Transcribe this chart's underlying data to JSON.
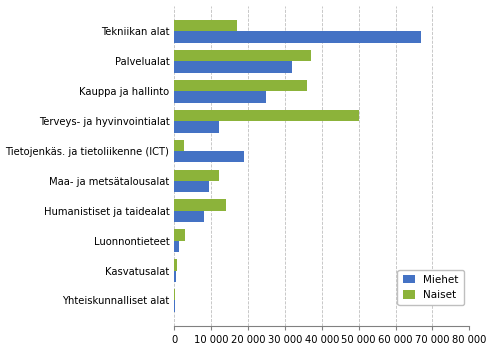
{
  "categories": [
    "Tekniikan alat",
    "Palvelualat",
    "Kauppa ja hallinto",
    "Terveys- ja hyvinvointialat",
    "Tietojenkäs. ja tietoliikenne (ICT)",
    "Maa- ja metsätalousalat",
    "Humanistiset ja taidealat",
    "Luonnontieteet",
    "Kasvatusalat",
    "Yhteiskunnalliset alat"
  ],
  "miehet": [
    67000,
    32000,
    25000,
    12000,
    19000,
    9500,
    8000,
    1200,
    400,
    200
  ],
  "naiset": [
    17000,
    37000,
    36000,
    50000,
    2500,
    12000,
    14000,
    2800,
    600,
    200
  ],
  "miehet_color": "#4472C4",
  "naiset_color": "#8CB33A",
  "background_color": "#FFFFFF",
  "grid_color": "#BFBFBF",
  "xlim": [
    0,
    80000
  ],
  "xticks": [
    0,
    10000,
    20000,
    30000,
    40000,
    50000,
    60000,
    70000,
    80000
  ],
  "xtick_labels": [
    "0",
    "10 000",
    "20 000",
    "30 000",
    "40 000",
    "50 000",
    "60 000",
    "70 000",
    "80 000"
  ],
  "legend_labels": [
    "Miehet",
    "Naiset"
  ],
  "bar_height": 0.38
}
